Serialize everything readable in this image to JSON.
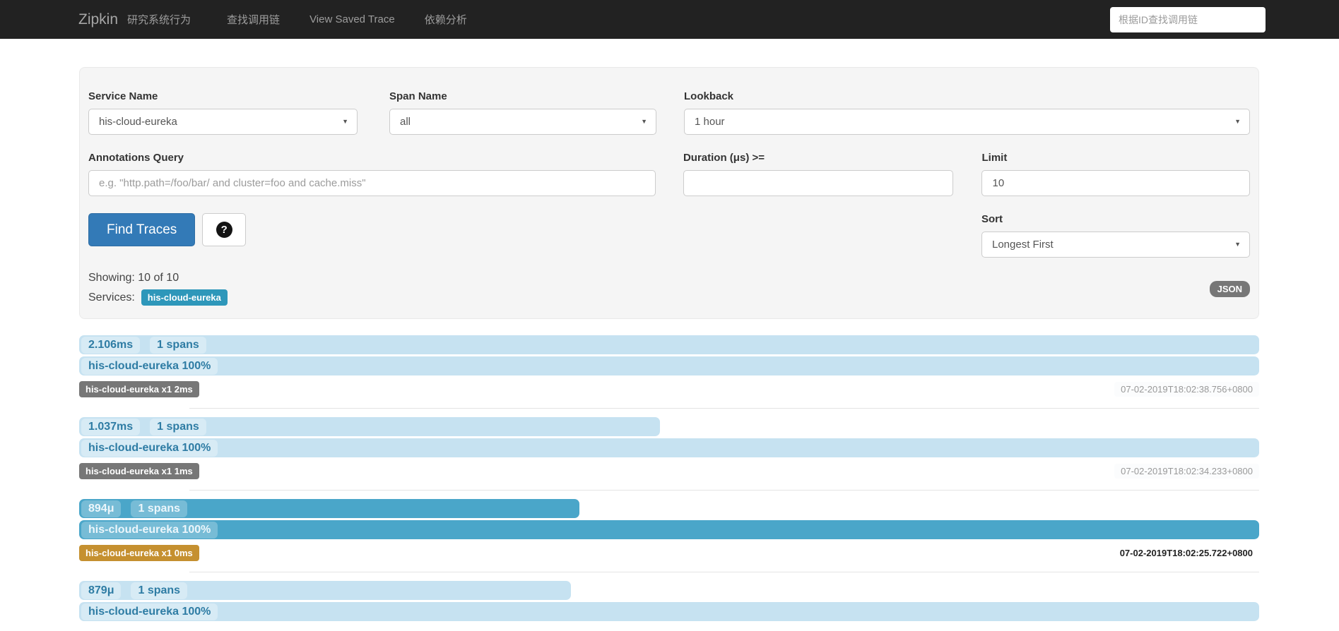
{
  "navbar": {
    "brand": "Zipkin",
    "items": [
      "研究系统行为",
      "查找调用链",
      "View Saved Trace",
      "依赖分析"
    ],
    "search_placeholder": "根据ID查找调用链"
  },
  "form": {
    "service_name": {
      "label": "Service Name",
      "value": "his-cloud-eureka"
    },
    "span_name": {
      "label": "Span Name",
      "value": "all"
    },
    "lookback": {
      "label": "Lookback",
      "value": "1 hour"
    },
    "annotations_query": {
      "label": "Annotations Query",
      "placeholder": "e.g. \"http.path=/foo/bar/ and cluster=foo and cache.miss\""
    },
    "duration": {
      "label": "Duration (μs) >=",
      "value": ""
    },
    "limit": {
      "label": "Limit",
      "value": "10"
    },
    "sort": {
      "label": "Sort",
      "value": "Longest First"
    },
    "find_traces_label": "Find Traces",
    "help_icon": "?"
  },
  "results": {
    "showing_label": "Showing: 10 of 10",
    "services_label": "Services:",
    "service_badge": "his-cloud-eureka",
    "json_label": "JSON"
  },
  "traces": [
    {
      "duration": "2.106ms",
      "spans": "1 spans",
      "service": "his-cloud-eureka 100%",
      "badge": "his-cloud-eureka x1 2ms",
      "timestamp": "07-02-2019T18:02:38.756+0800",
      "width_pct": 100,
      "highlighted": false
    },
    {
      "duration": "1.037ms",
      "spans": "1 spans",
      "service": "his-cloud-eureka 100%",
      "badge": "his-cloud-eureka x1 1ms",
      "timestamp": "07-02-2019T18:02:34.233+0800",
      "width_pct": 49.2,
      "highlighted": false
    },
    {
      "duration": "894μ",
      "spans": "1 spans",
      "service": "his-cloud-eureka 100%",
      "badge": "his-cloud-eureka x1 0ms",
      "timestamp": "07-02-2019T18:02:25.722+0800",
      "width_pct": 42.4,
      "highlighted": true
    },
    {
      "duration": "879μ",
      "spans": "1 spans",
      "service": "his-cloud-eureka 100%",
      "width_pct": 41.7,
      "highlighted": false
    }
  ],
  "colors": {
    "navbar_bg": "#222222",
    "accent": "#337ab7",
    "bar_light": "#c6e2f1",
    "bar_highlight": "#4aa6c9",
    "badge_gray": "#777777",
    "badge_amber": "#c59030",
    "service_badge": "#2e97ba"
  }
}
